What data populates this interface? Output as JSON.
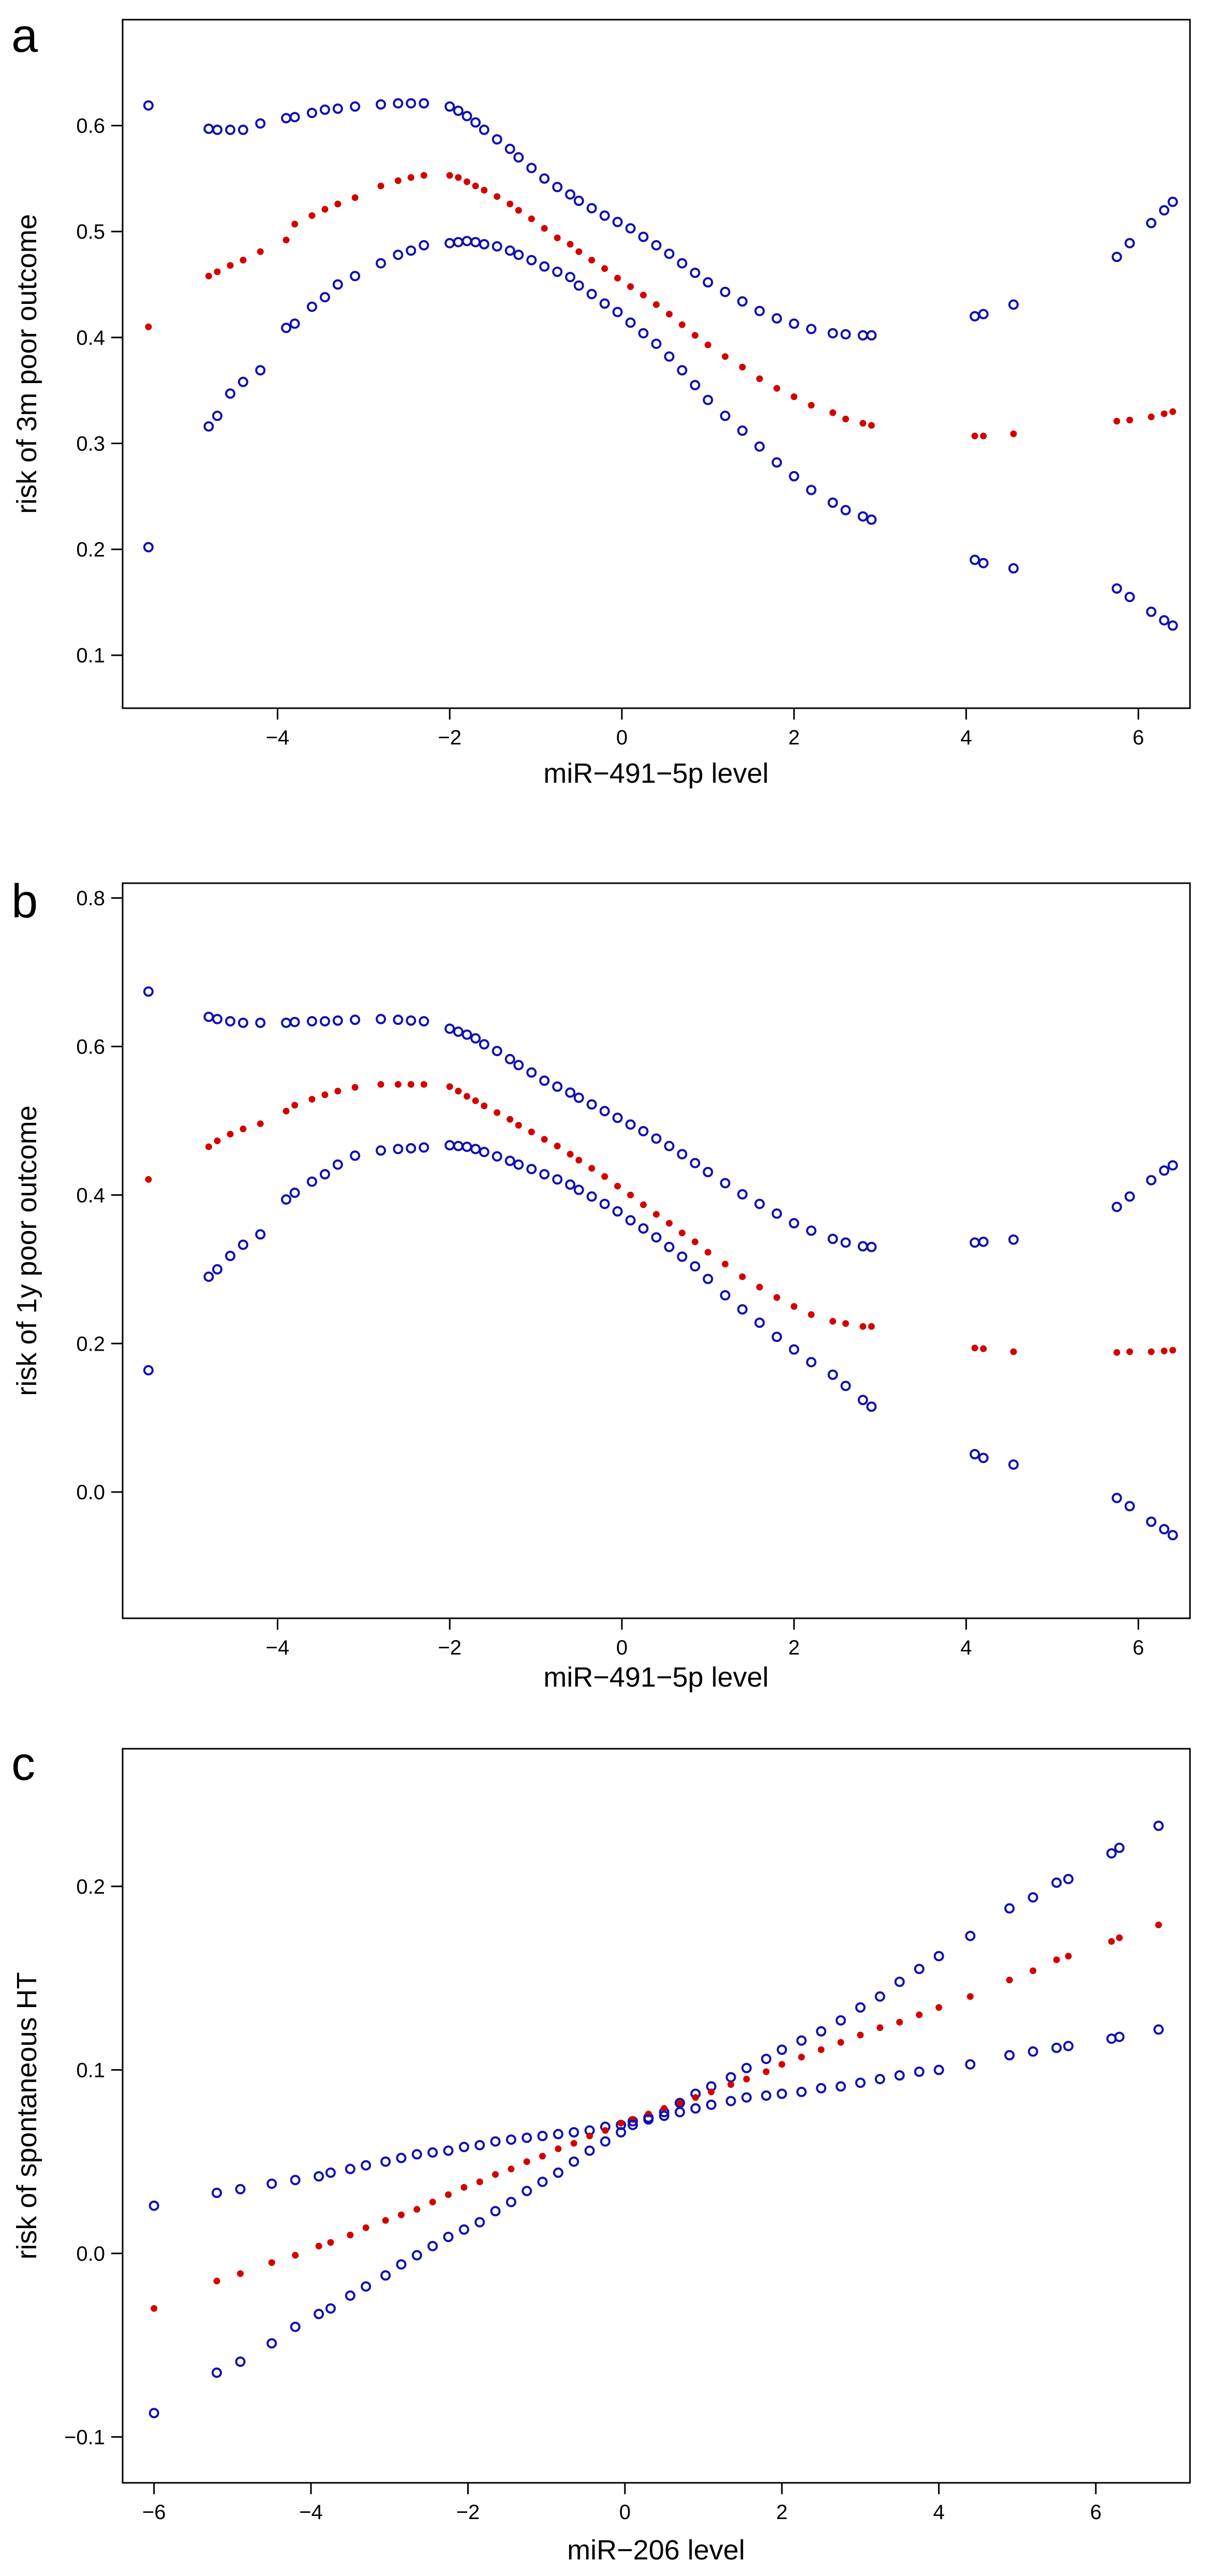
{
  "chart_data": [
    {
      "panel": "a",
      "type": "scatter",
      "xlabel": "miR−491−5p level",
      "ylabel": "risk of 3m poor outcome",
      "xlim": [
        -5.8,
        6.6
      ],
      "ylim": [
        0.05,
        0.7
      ],
      "xticks": [
        -4,
        -2,
        0,
        2,
        4,
        6
      ],
      "xtick_labels": [
        "−4",
        "−2",
        "0",
        "2",
        "4",
        "6"
      ],
      "yticks": [
        0.1,
        0.2,
        0.3,
        0.4,
        0.5,
        0.6
      ],
      "ytick_labels": [
        "0.1",
        "0.2",
        "0.3",
        "0.4",
        "0.5",
        "0.6"
      ],
      "x": [
        -5.5,
        -4.8,
        -4.7,
        -4.55,
        -4.4,
        -4.2,
        -3.9,
        -3.8,
        -3.6,
        -3.45,
        -3.3,
        -3.1,
        -2.8,
        -2.6,
        -2.45,
        -2.3,
        -2.0,
        -1.9,
        -1.8,
        -1.7,
        -1.6,
        -1.45,
        -1.3,
        -1.2,
        -1.05,
        -0.9,
        -0.75,
        -0.6,
        -0.5,
        -0.35,
        -0.2,
        -0.05,
        0.1,
        0.25,
        0.4,
        0.55,
        0.7,
        0.85,
        1.0,
        1.2,
        1.4,
        1.6,
        1.8,
        2.0,
        2.2,
        2.45,
        2.6,
        2.8,
        2.9,
        4.1,
        4.2,
        4.55,
        5.75,
        5.9,
        6.15,
        6.3,
        6.4
      ],
      "series": [
        {
          "name": "upper 95% CI",
          "style": "open-circle",
          "values": [
            0.619,
            0.597,
            0.596,
            0.596,
            0.596,
            0.602,
            0.607,
            0.608,
            0.612,
            0.615,
            0.616,
            0.618,
            0.62,
            0.621,
            0.621,
            0.621,
            0.618,
            0.614,
            0.609,
            0.603,
            0.596,
            0.587,
            0.578,
            0.57,
            0.56,
            0.55,
            0.542,
            0.535,
            0.529,
            0.522,
            0.515,
            0.509,
            0.503,
            0.495,
            0.487,
            0.479,
            0.47,
            0.461,
            0.452,
            0.443,
            0.434,
            0.425,
            0.418,
            0.413,
            0.408,
            0.404,
            0.403,
            0.402,
            0.402,
            0.42,
            0.422,
            0.431,
            0.476,
            0.489,
            0.508,
            0.52,
            0.528
          ]
        },
        {
          "name": "estimate",
          "style": "filled-dot",
          "values": [
            0.41,
            0.458,
            0.462,
            0.468,
            0.473,
            0.481,
            0.492,
            0.507,
            0.515,
            0.521,
            0.526,
            0.532,
            0.543,
            0.548,
            0.551,
            0.553,
            0.553,
            0.551,
            0.547,
            0.543,
            0.539,
            0.533,
            0.526,
            0.52,
            0.512,
            0.503,
            0.494,
            0.488,
            0.481,
            0.473,
            0.465,
            0.456,
            0.448,
            0.44,
            0.431,
            0.422,
            0.412,
            0.402,
            0.393,
            0.382,
            0.372,
            0.361,
            0.352,
            0.344,
            0.336,
            0.329,
            0.323,
            0.319,
            0.317,
            0.307,
            0.307,
            0.309,
            0.321,
            0.322,
            0.325,
            0.328,
            0.33
          ]
        },
        {
          "name": "lower 95% CI",
          "style": "open-circle",
          "values": [
            0.202,
            0.316,
            0.326,
            0.347,
            0.358,
            0.369,
            0.409,
            0.413,
            0.429,
            0.438,
            0.45,
            0.458,
            0.47,
            0.478,
            0.482,
            0.487,
            0.489,
            0.49,
            0.491,
            0.49,
            0.488,
            0.486,
            0.482,
            0.478,
            0.473,
            0.467,
            0.462,
            0.457,
            0.449,
            0.441,
            0.432,
            0.424,
            0.414,
            0.404,
            0.394,
            0.382,
            0.369,
            0.355,
            0.341,
            0.326,
            0.312,
            0.297,
            0.282,
            0.269,
            0.256,
            0.244,
            0.237,
            0.231,
            0.228,
            0.19,
            0.187,
            0.182,
            0.163,
            0.155,
            0.141,
            0.133,
            0.128
          ]
        }
      ]
    },
    {
      "panel": "b",
      "type": "scatter",
      "xlabel": "miR−491−5p level",
      "ylabel": "risk of 1y poor outcome",
      "xlim": [
        -5.8,
        6.6
      ],
      "ylim": [
        -0.17,
        0.82
      ],
      "xticks": [
        -4,
        -2,
        0,
        2,
        4,
        6
      ],
      "xtick_labels": [
        "−4",
        "−2",
        "0",
        "2",
        "4",
        "6"
      ],
      "yticks": [
        0.0,
        0.2,
        0.4,
        0.6,
        0.8
      ],
      "ytick_labels": [
        "0.0",
        "0.2",
        "0.4",
        "0.6",
        "0.8"
      ],
      "x": [
        -5.5,
        -4.8,
        -4.7,
        -4.55,
        -4.4,
        -4.2,
        -3.9,
        -3.8,
        -3.6,
        -3.45,
        -3.3,
        -3.1,
        -2.8,
        -2.6,
        -2.45,
        -2.3,
        -2.0,
        -1.9,
        -1.8,
        -1.7,
        -1.6,
        -1.45,
        -1.3,
        -1.2,
        -1.05,
        -0.9,
        -0.75,
        -0.6,
        -0.5,
        -0.35,
        -0.2,
        -0.05,
        0.1,
        0.25,
        0.4,
        0.55,
        0.7,
        0.85,
        1.0,
        1.2,
        1.4,
        1.6,
        1.8,
        2.0,
        2.2,
        2.45,
        2.6,
        2.8,
        2.9,
        4.1,
        4.2,
        4.55,
        5.75,
        5.9,
        6.15,
        6.3,
        6.4
      ],
      "series": [
        {
          "name": "upper 95% CI",
          "style": "open-circle",
          "values": [
            0.674,
            0.64,
            0.637,
            0.634,
            0.632,
            0.632,
            0.632,
            0.633,
            0.634,
            0.634,
            0.635,
            0.636,
            0.637,
            0.636,
            0.635,
            0.634,
            0.624,
            0.62,
            0.616,
            0.611,
            0.603,
            0.594,
            0.583,
            0.575,
            0.565,
            0.554,
            0.546,
            0.538,
            0.531,
            0.522,
            0.513,
            0.504,
            0.495,
            0.486,
            0.476,
            0.466,
            0.455,
            0.443,
            0.431,
            0.416,
            0.401,
            0.388,
            0.375,
            0.362,
            0.352,
            0.341,
            0.336,
            0.331,
            0.33,
            0.336,
            0.337,
            0.34,
            0.384,
            0.398,
            0.42,
            0.433,
            0.44
          ]
        },
        {
          "name": "estimate",
          "style": "filled-dot",
          "values": [
            0.421,
            0.465,
            0.473,
            0.482,
            0.489,
            0.496,
            0.513,
            0.521,
            0.529,
            0.535,
            0.54,
            0.545,
            0.549,
            0.549,
            0.549,
            0.549,
            0.546,
            0.54,
            0.533,
            0.527,
            0.52,
            0.511,
            0.502,
            0.494,
            0.485,
            0.475,
            0.466,
            0.455,
            0.447,
            0.436,
            0.425,
            0.412,
            0.4,
            0.387,
            0.374,
            0.362,
            0.349,
            0.337,
            0.323,
            0.307,
            0.29,
            0.276,
            0.262,
            0.25,
            0.239,
            0.23,
            0.227,
            0.223,
            0.223,
            0.194,
            0.193,
            0.189,
            0.188,
            0.189,
            0.189,
            0.19,
            0.191
          ]
        },
        {
          "name": "lower 95% CI",
          "style": "open-circle",
          "values": [
            0.164,
            0.29,
            0.3,
            0.318,
            0.333,
            0.347,
            0.394,
            0.403,
            0.418,
            0.428,
            0.441,
            0.453,
            0.46,
            0.462,
            0.463,
            0.464,
            0.467,
            0.466,
            0.465,
            0.462,
            0.458,
            0.452,
            0.446,
            0.441,
            0.435,
            0.428,
            0.421,
            0.414,
            0.407,
            0.398,
            0.388,
            0.378,
            0.366,
            0.355,
            0.343,
            0.33,
            0.317,
            0.304,
            0.287,
            0.265,
            0.246,
            0.228,
            0.209,
            0.192,
            0.175,
            0.158,
            0.143,
            0.124,
            0.115,
            0.051,
            0.046,
            0.037,
            -0.008,
            -0.019,
            -0.04,
            -0.05,
            -0.058
          ]
        }
      ]
    },
    {
      "panel": "c",
      "type": "scatter",
      "xlabel": "miR−206 level",
      "ylabel": "risk of spontaneous HT",
      "xlim": [
        -6.4,
        7.2
      ],
      "ylim": [
        -0.125,
        0.275
      ],
      "xticks": [
        -6,
        -4,
        -2,
        0,
        2,
        4,
        6
      ],
      "xtick_labels": [
        "−6",
        "−4",
        "−2",
        "0",
        "2",
        "4",
        "6"
      ],
      "yticks": [
        -0.1,
        0.0,
        0.1,
        0.2
      ],
      "ytick_labels": [
        "−0.1",
        "0.0",
        "0.1",
        "0.2"
      ],
      "x": [
        -6.0,
        -5.2,
        -4.9,
        -4.5,
        -4.2,
        -3.9,
        -3.75,
        -3.5,
        -3.3,
        -3.05,
        -2.85,
        -2.65,
        -2.45,
        -2.25,
        -2.05,
        -1.85,
        -1.65,
        -1.45,
        -1.25,
        -1.05,
        -0.85,
        -0.65,
        -0.45,
        -0.25,
        -0.05,
        0.1,
        0.3,
        0.5,
        0.7,
        0.9,
        1.1,
        1.35,
        1.55,
        1.8,
        2.0,
        2.25,
        2.5,
        2.75,
        3.0,
        3.25,
        3.5,
        3.75,
        4.0,
        4.4,
        4.9,
        5.2,
        5.5,
        5.65,
        6.2,
        6.3,
        6.8
      ],
      "series": [
        {
          "name": "upper 95% CI",
          "style": "open-circle",
          "values": [
            0.026,
            0.033,
            0.035,
            0.038,
            0.04,
            0.042,
            0.044,
            0.046,
            0.048,
            0.05,
            0.052,
            0.054,
            0.055,
            0.056,
            0.058,
            0.059,
            0.061,
            0.062,
            0.063,
            0.064,
            0.065,
            0.066,
            0.067,
            0.069,
            0.07,
            0.072,
            0.074,
            0.077,
            0.082,
            0.087,
            0.091,
            0.096,
            0.101,
            0.106,
            0.111,
            0.116,
            0.121,
            0.127,
            0.134,
            0.14,
            0.148,
            0.155,
            0.162,
            0.173,
            0.188,
            0.194,
            0.202,
            0.204,
            0.218,
            0.221,
            0.233
          ]
        },
        {
          "name": "estimate",
          "style": "filled-dot",
          "values": [
            -0.03,
            -0.015,
            -0.011,
            -0.005,
            -0.001,
            0.004,
            0.006,
            0.01,
            0.014,
            0.018,
            0.021,
            0.024,
            0.028,
            0.032,
            0.036,
            0.039,
            0.043,
            0.046,
            0.05,
            0.053,
            0.057,
            0.06,
            0.064,
            0.067,
            0.071,
            0.073,
            0.076,
            0.079,
            0.082,
            0.085,
            0.088,
            0.092,
            0.095,
            0.099,
            0.103,
            0.107,
            0.111,
            0.115,
            0.119,
            0.123,
            0.126,
            0.13,
            0.134,
            0.14,
            0.149,
            0.154,
            0.16,
            0.162,
            0.17,
            0.172,
            0.179
          ]
        },
        {
          "name": "lower 95% CI",
          "style": "open-circle",
          "values": [
            -0.087,
            -0.065,
            -0.059,
            -0.049,
            -0.04,
            -0.033,
            -0.03,
            -0.023,
            -0.018,
            -0.012,
            -0.006,
            -0.001,
            0.004,
            0.009,
            0.013,
            0.017,
            0.023,
            0.028,
            0.034,
            0.039,
            0.044,
            0.05,
            0.056,
            0.061,
            0.066,
            0.07,
            0.073,
            0.075,
            0.077,
            0.079,
            0.081,
            0.083,
            0.085,
            0.086,
            0.087,
            0.088,
            0.09,
            0.091,
            0.093,
            0.095,
            0.097,
            0.099,
            0.1,
            0.103,
            0.108,
            0.11,
            0.112,
            0.113,
            0.117,
            0.118,
            0.122
          ]
        }
      ]
    }
  ]
}
